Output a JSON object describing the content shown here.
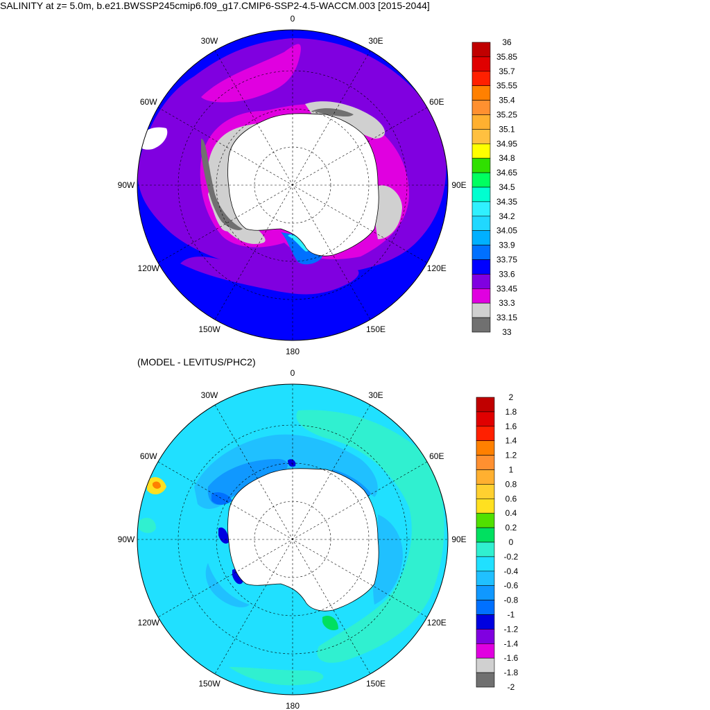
{
  "title": "SALINITY at z=   5.0m, b.e21.BWSSP245cmip6.f09_g17.CMIP6-SSP2-4.5-WACCM.003 [2015-2044]",
  "subtitle": "(MODEL - LEVITUS/PHC2)",
  "lon_labels": [
    "0",
    "30E",
    "60E",
    "90E",
    "120E",
    "150E",
    "180",
    "150W",
    "120W",
    "90W",
    "60W",
    "30W"
  ],
  "colorbar_top": {
    "labels": [
      "36",
      "35.85",
      "35.7",
      "35.55",
      "35.4",
      "35.25",
      "35.1",
      "34.95",
      "34.8",
      "34.65",
      "34.5",
      "34.35",
      "34.2",
      "34.05",
      "33.9",
      "33.75",
      "33.6",
      "33.45",
      "33.3",
      "33.15",
      "33"
    ],
    "colors": [
      "#c00000",
      "#e00000",
      "#ff2000",
      "#ff8000",
      "#ff9030",
      "#ffb030",
      "#ffc040",
      "#ffff00",
      "#30e000",
      "#00ff60",
      "#00ffd0",
      "#30f0ff",
      "#20d8ff",
      "#00b0ff",
      "#0070ff",
      "#0000ff",
      "#8000e0",
      "#e000e0",
      "#d0d0d0",
      "#707070"
    ]
  },
  "colorbar_bottom": {
    "labels": [
      "2",
      "1.8",
      "1.6",
      "1.4",
      "1.2",
      "1",
      "0.8",
      "0.6",
      "0.4",
      "0.2",
      "0",
      "-0.2",
      "-0.4",
      "-0.6",
      "-0.8",
      "-1",
      "-1.2",
      "-1.4",
      "-1.6",
      "-1.8",
      "-2"
    ],
    "colors": [
      "#c00000",
      "#e00000",
      "#ff2000",
      "#ff8000",
      "#ff9030",
      "#ffb030",
      "#ffd030",
      "#ffe020",
      "#50e000",
      "#00e060",
      "#30f0d0",
      "#20e0ff",
      "#20c0ff",
      "#1098ff",
      "#0070ff",
      "#0000e0",
      "#8000e0",
      "#e000e0",
      "#d0d0d0",
      "#707070"
    ]
  }
}
